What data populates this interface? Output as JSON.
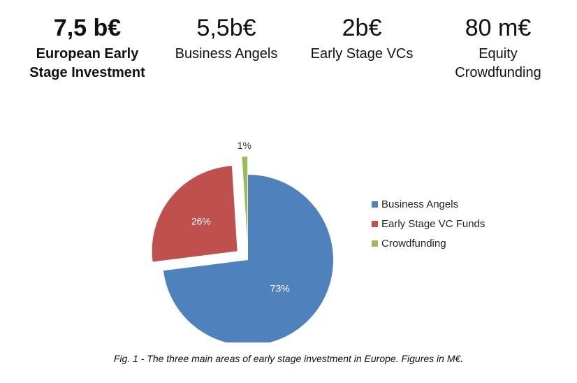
{
  "stats": [
    {
      "value": "7,5 b€",
      "label_lines": [
        "European Early",
        "Stage Investment"
      ]
    },
    {
      "value": "5,5b€",
      "label_lines": [
        "Business Angels"
      ]
    },
    {
      "value": "2b€",
      "label_lines": [
        "Early Stage VCs"
      ]
    },
    {
      "value": "80 m€",
      "label_lines": [
        "Equity",
        "Crowdfunding"
      ]
    }
  ],
  "chart_data": {
    "type": "pie",
    "slices": [
      {
        "name": "Business Angels",
        "value": 73,
        "label": "73%",
        "color": "#4f81bd"
      },
      {
        "name": "Early Stage VC Funds",
        "value": 26,
        "label": "26%",
        "color": "#c0504d"
      },
      {
        "name": "Crowdfunding",
        "value": 1,
        "label": "1%",
        "color": "#9bbb59"
      }
    ],
    "legend_position": "right",
    "exploded": [
      "Early Stage VC Funds",
      "Crowdfunding"
    ]
  },
  "caption": "Fig. 1 - The three main areas of early stage investment in Europe. Figures in M€."
}
